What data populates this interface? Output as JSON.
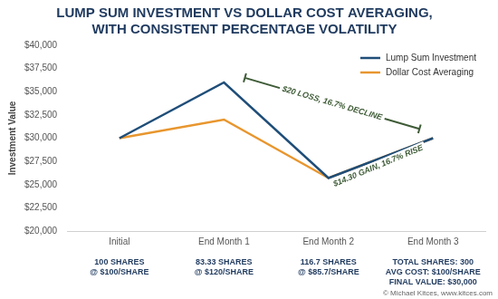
{
  "chart_data": {
    "type": "line",
    "title": [
      "LUMP SUM INVESTMENT VS DOLLAR COST AVERAGING,",
      "WITH CONSISTENT PERCENTAGE VOLATILITY"
    ],
    "y_label": "Investment Value",
    "categories": [
      "Initial",
      "End Month 1",
      "End Month 2",
      "End Month 3"
    ],
    "category_notes": [
      [
        "100 SHARES",
        "@ $100/SHARE"
      ],
      [
        "83.33 SHARES",
        "@ $120/SHARE"
      ],
      [
        "116.7 SHARES",
        "@ $85.7/SHARE"
      ],
      [
        "TOTAL SHARES: 300",
        "AVG COST: $100/SHARE",
        "FINAL VALUE: $30,000"
      ]
    ],
    "series": [
      {
        "name": "Lump Sum Investment",
        "color": "#1f4e79",
        "values": [
          30000,
          36000,
          25710,
          30000
        ]
      },
      {
        "name": "Dollar Cost Averaging",
        "color": "#e8962e",
        "values": [
          30000,
          32000,
          25710,
          30000
        ]
      }
    ],
    "ylim": [
      20000,
      40000
    ],
    "yticks": [
      {
        "value": 20000,
        "label": "$20,000"
      },
      {
        "value": 22500,
        "label": "$22,500"
      },
      {
        "value": 25000,
        "label": "$25,000"
      },
      {
        "value": 27500,
        "label": "$27,500"
      },
      {
        "value": 30000,
        "label": "$30,000"
      },
      {
        "value": 32500,
        "label": "$32,500"
      },
      {
        "value": 35000,
        "label": "$35,000"
      },
      {
        "value": 37500,
        "label": "$37,500"
      },
      {
        "value": 40000,
        "label": "$40,000"
      }
    ],
    "grid": false,
    "legend": "upper right",
    "annotations": [
      {
        "text": "$20 LOSS, 16.7% DECLINE",
        "from": {
          "x": 1.2,
          "y": 36500
        },
        "to": {
          "x": 2.87,
          "y": 31000
        }
      },
      {
        "text": "$14.30 GAIN, 16.7% RISE",
        "from": {
          "x": 2.05,
          "y": 25000
        },
        "to": {
          "x": 2.9,
          "y": 29000
        }
      }
    ],
    "credit": "© Michael Kitces, www.kitces.com"
  }
}
